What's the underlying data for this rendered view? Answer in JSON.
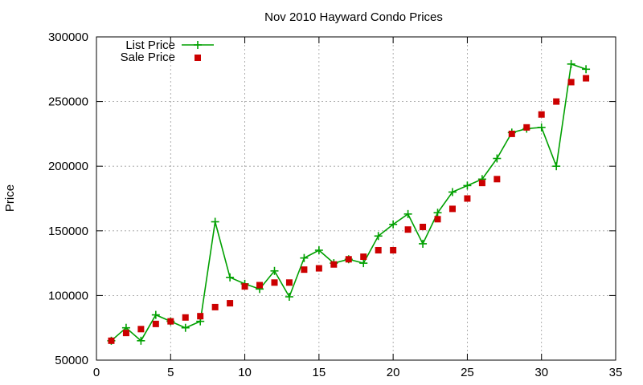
{
  "chart_data": {
    "type": "line",
    "title": "Nov 2010 Hayward Condo Prices",
    "xlabel": "",
    "ylabel": "Price",
    "xlim": [
      0,
      35
    ],
    "ylim": [
      50000,
      300000
    ],
    "x_ticks": [
      0,
      5,
      10,
      15,
      20,
      25,
      30,
      35
    ],
    "y_ticks": [
      50000,
      100000,
      150000,
      200000,
      250000,
      300000
    ],
    "grid": true,
    "legend_position": "top-left",
    "series": [
      {
        "name": "List Price",
        "style": "linespoints",
        "color": "#00a000",
        "x": [
          1,
          2,
          3,
          4,
          5,
          6,
          7,
          8,
          9,
          10,
          11,
          12,
          13,
          14,
          15,
          16,
          17,
          18,
          19,
          20,
          21,
          22,
          23,
          24,
          25,
          26,
          27,
          28,
          29,
          30,
          31,
          32,
          33
        ],
        "values": [
          65000,
          75000,
          65000,
          85000,
          80000,
          75000,
          80000,
          157000,
          114000,
          109000,
          105000,
          119000,
          99000,
          129000,
          135000,
          125000,
          128000,
          125000,
          146000,
          155000,
          163000,
          140000,
          164000,
          180000,
          185000,
          190000,
          206000,
          226000,
          229000,
          230000,
          200000,
          279000,
          275000
        ]
      },
      {
        "name": "Sale Price",
        "style": "points",
        "color": "#cc0000",
        "x": [
          1,
          2,
          3,
          4,
          5,
          6,
          7,
          8,
          9,
          10,
          11,
          12,
          13,
          14,
          15,
          16,
          17,
          18,
          19,
          20,
          21,
          22,
          23,
          24,
          25,
          26,
          27,
          28,
          29,
          30,
          31,
          32,
          33
        ],
        "values": [
          65000,
          71000,
          74000,
          78000,
          80000,
          83000,
          84000,
          91000,
          94000,
          107000,
          108000,
          110000,
          110000,
          120000,
          121000,
          124000,
          128000,
          130000,
          135000,
          135000,
          151000,
          153000,
          159000,
          167000,
          175000,
          187000,
          190000,
          225000,
          230000,
          240000,
          250000,
          265000,
          268000
        ]
      }
    ]
  }
}
